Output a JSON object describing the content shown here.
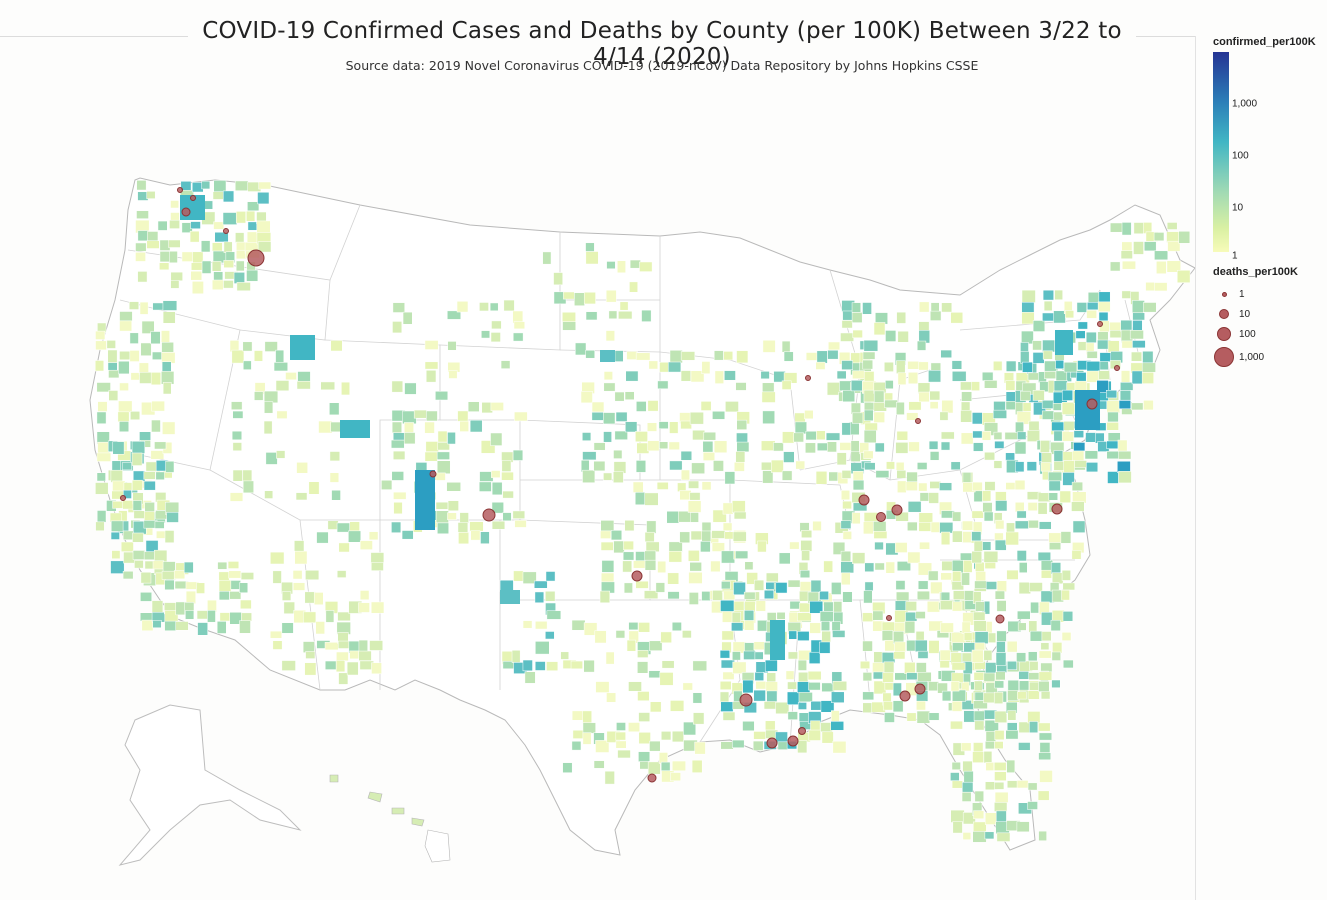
{
  "header": {
    "title": "COVID-19 Confirmed Cases and Deaths by County (per 100K) Between 3/22 to 4/14 (2020)",
    "subtitle": "Source data: 2019 Novel Coronavirus COVID-19 (2019-nCoV) Data Repository by Johns Hopkins CSSE"
  },
  "legend": {
    "color_title": "confirmed_per100K",
    "color_ticks": [
      {
        "label": "1,000",
        "value": 1000
      },
      {
        "label": "100",
        "value": 100
      },
      {
        "label": "10",
        "value": 10
      },
      {
        "label": "1",
        "value": 1
      }
    ],
    "color_scale": "log",
    "colors": [
      "#f7fbb9",
      "#a1dab4",
      "#41b6c4",
      "#2c7fb8",
      "#253494"
    ],
    "size_title": "deaths_per100K",
    "size_items": [
      {
        "label": "1",
        "value": 1
      },
      {
        "label": "10",
        "value": 10
      },
      {
        "label": "100",
        "value": 100
      },
      {
        "label": "1,000",
        "value": 1000
      }
    ],
    "bubble_color": "#b55d60"
  }
}
